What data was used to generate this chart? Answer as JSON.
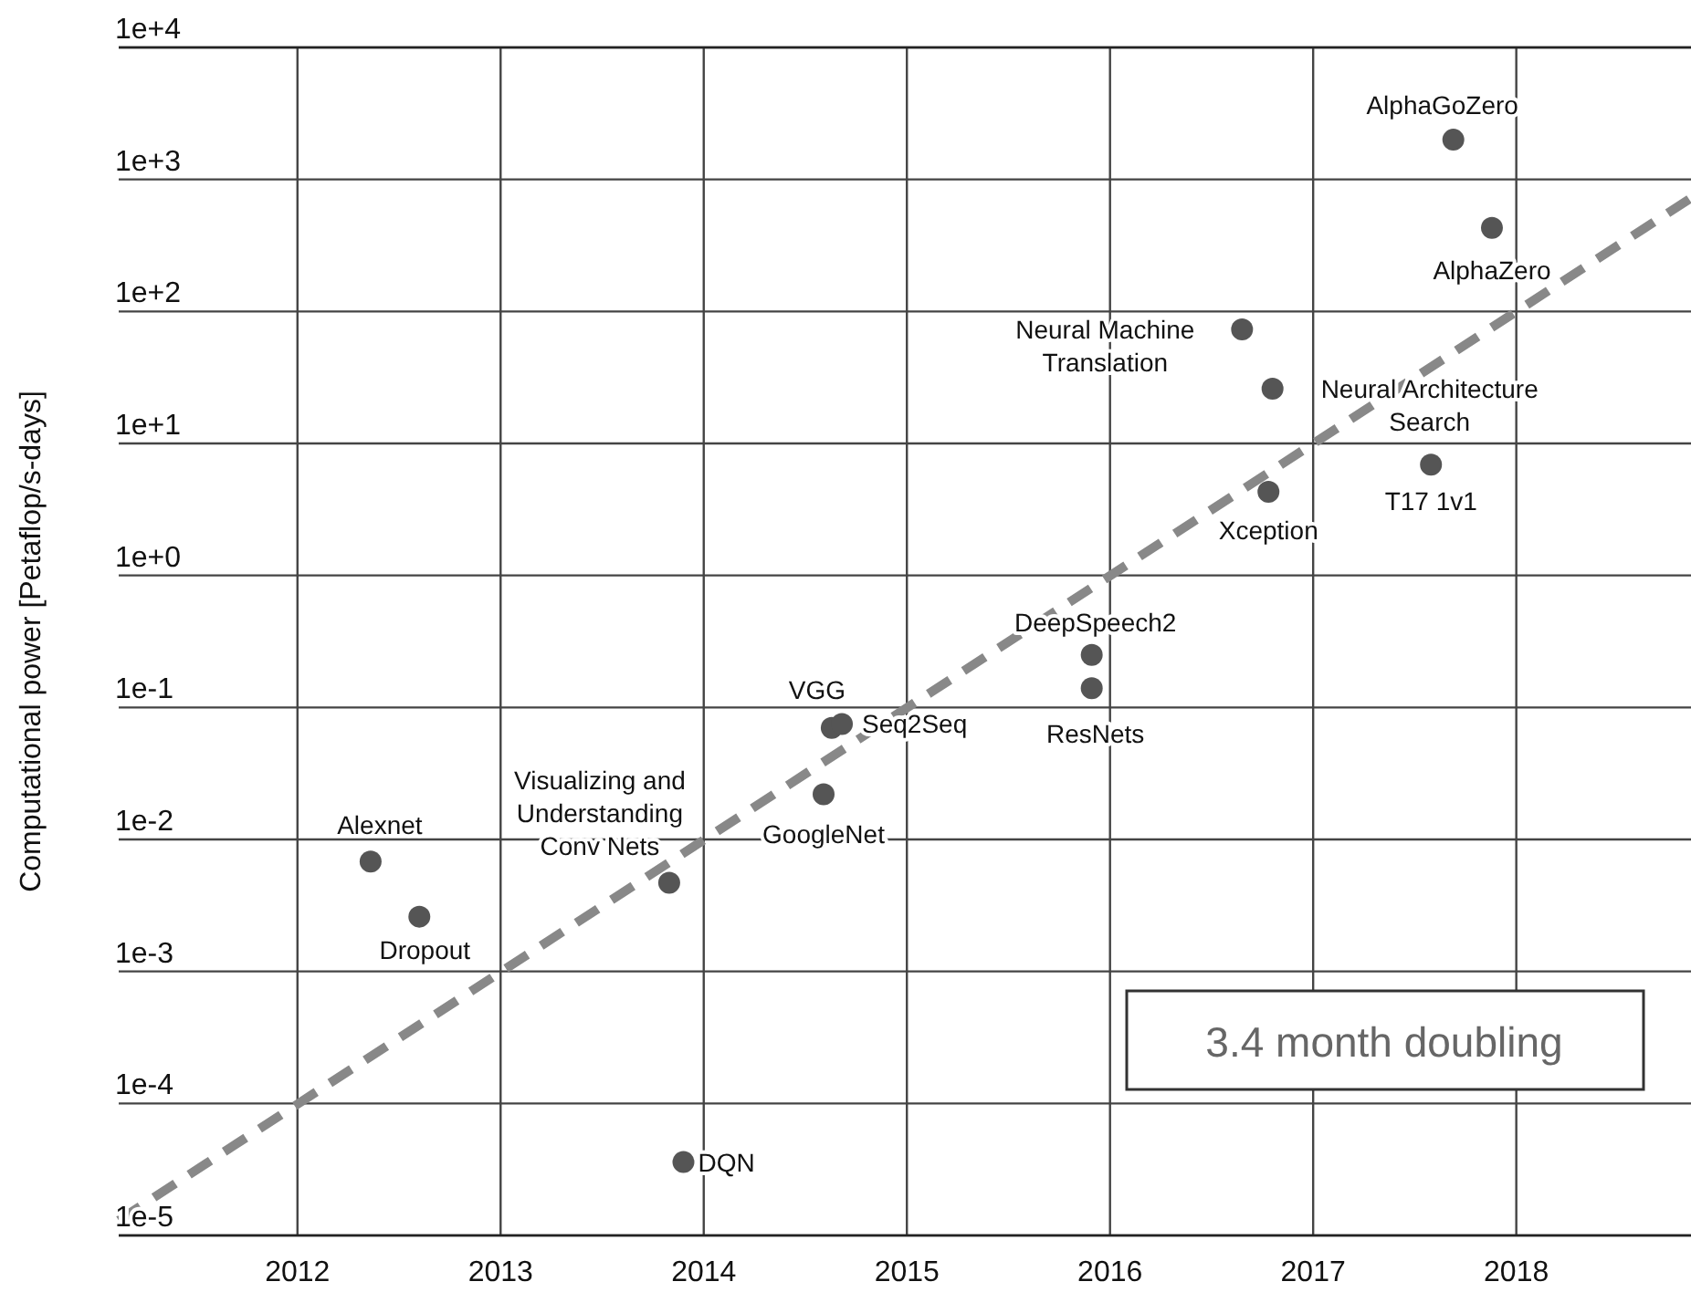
{
  "chart_data": {
    "type": "scatter",
    "ylabel": "Computational power [Petaflop/s-days]",
    "log": "y",
    "grid": true,
    "marker": "circle",
    "xlim": [
      2011.12,
      2018.86
    ],
    "xticks": [
      2012,
      2013,
      2014,
      2015,
      2016,
      2017,
      2018
    ],
    "ylim": [
      1e-05,
      10000
    ],
    "yticks": [
      {
        "value": 1e-05,
        "label": "1e-5"
      },
      {
        "value": 0.0001,
        "label": "1e-4"
      },
      {
        "value": 0.001,
        "label": "1e-3"
      },
      {
        "value": 0.01,
        "label": "1e-2"
      },
      {
        "value": 0.1,
        "label": "1e-1"
      },
      {
        "value": 1,
        "label": "1e+0"
      },
      {
        "value": 10,
        "label": "1e+1"
      },
      {
        "value": 100,
        "label": "1e+2"
      },
      {
        "value": 1000,
        "label": "1e+3"
      },
      {
        "value": 10000,
        "label": "1e+4"
      }
    ],
    "series": [
      {
        "color": "#555555",
        "x": [
          2012.36,
          2012.6,
          2013.83,
          2013.9,
          2014.59,
          2014.63,
          2014.68,
          2015.91,
          2015.91,
          2016.65,
          2016.8,
          2016.78,
          2017.58,
          2017.69,
          2017.88
        ],
        "values": [
          0.0068,
          0.0026,
          0.0047,
          3.6e-05,
          0.022,
          0.07,
          0.075,
          0.25,
          0.14,
          73,
          26,
          4.3,
          6.9,
          2000,
          430
        ]
      },
      {
        "type": "line",
        "color": "#888888",
        "line_style": "dashed",
        "marker": "none",
        "x": [
          2011.12,
          2018.86
        ],
        "values": [
          1.3e-05,
          724
        ]
      }
    ],
    "annotations": [
      {
        "text": "Alexnet",
        "x": 2012.36,
        "y": 0.0068
      },
      {
        "text": "Dropout",
        "x": 2012.6,
        "y": 0.0026
      },
      {
        "text": "Visualizing and\nUnderstanding\nConv Nets",
        "x": 2013.83,
        "y": 0.0047
      },
      {
        "text": "DQN",
        "x": 2013.9,
        "y": 3.6e-05
      },
      {
        "text": "GoogleNet",
        "x": 2014.59,
        "y": 0.022
      },
      {
        "text": "VGG",
        "x": 2014.63,
        "y": 0.07
      },
      {
        "text": "Seq2Seq",
        "x": 2014.68,
        "y": 0.075
      },
      {
        "text": "DeepSpeech2",
        "x": 2015.91,
        "y": 0.25
      },
      {
        "text": "ResNets",
        "x": 2015.91,
        "y": 0.14
      },
      {
        "text": "Neural Machine\nTranslation",
        "x": 2016.65,
        "y": 73
      },
      {
        "text": "Neural Architecture\nSearch",
        "x": 2016.8,
        "y": 26
      },
      {
        "text": "Xception",
        "x": 2016.78,
        "y": 4.3
      },
      {
        "text": "T17 1v1",
        "x": 2017.58,
        "y": 6.9
      },
      {
        "text": "AlphaGoZero",
        "x": 2017.69,
        "y": 2000
      },
      {
        "text": "AlphaZero",
        "x": 2017.88,
        "y": 430
      },
      "3.4 month doubling"
    ]
  }
}
